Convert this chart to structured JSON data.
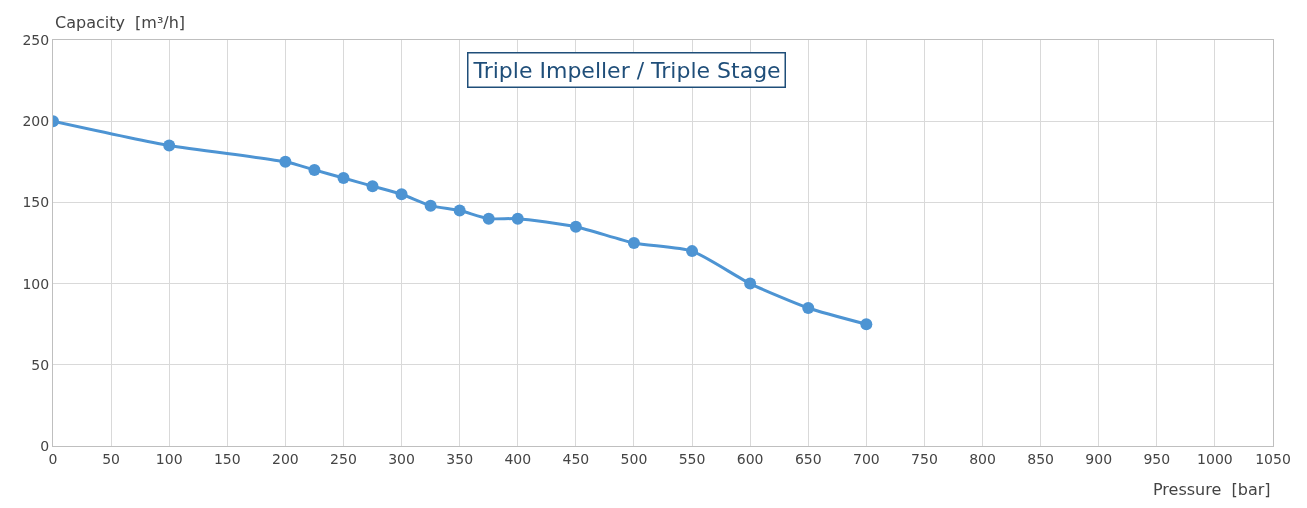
{
  "chart_data": {
    "type": "line",
    "title": "Triple Impeller / Triple Stage",
    "xlabel": "Pressure  [bar]",
    "ylabel": "Capacity  [m³/h]",
    "x": [
      0,
      100,
      200,
      225,
      250,
      275,
      300,
      325,
      350,
      375,
      400,
      450,
      500,
      550,
      600,
      650,
      700
    ],
    "series": [
      {
        "color": "#4d94d3",
        "values": [
          200,
          185,
          175,
          170,
          165,
          160,
          155,
          148,
          145,
          140,
          140,
          135,
          125,
          120,
          100,
          85,
          75
        ]
      }
    ],
    "xlim": [
      0,
      1050
    ],
    "xticks": [
      0,
      50,
      100,
      150,
      200,
      250,
      300,
      350,
      400,
      450,
      500,
      550,
      600,
      650,
      700,
      750,
      800,
      850,
      900,
      950,
      1000,
      1050
    ],
    "ylim": [
      0,
      250
    ],
    "yticks": [
      0,
      50,
      100,
      150,
      200,
      250
    ],
    "grid": true,
    "marker": "circle",
    "line_style": "solid"
  }
}
